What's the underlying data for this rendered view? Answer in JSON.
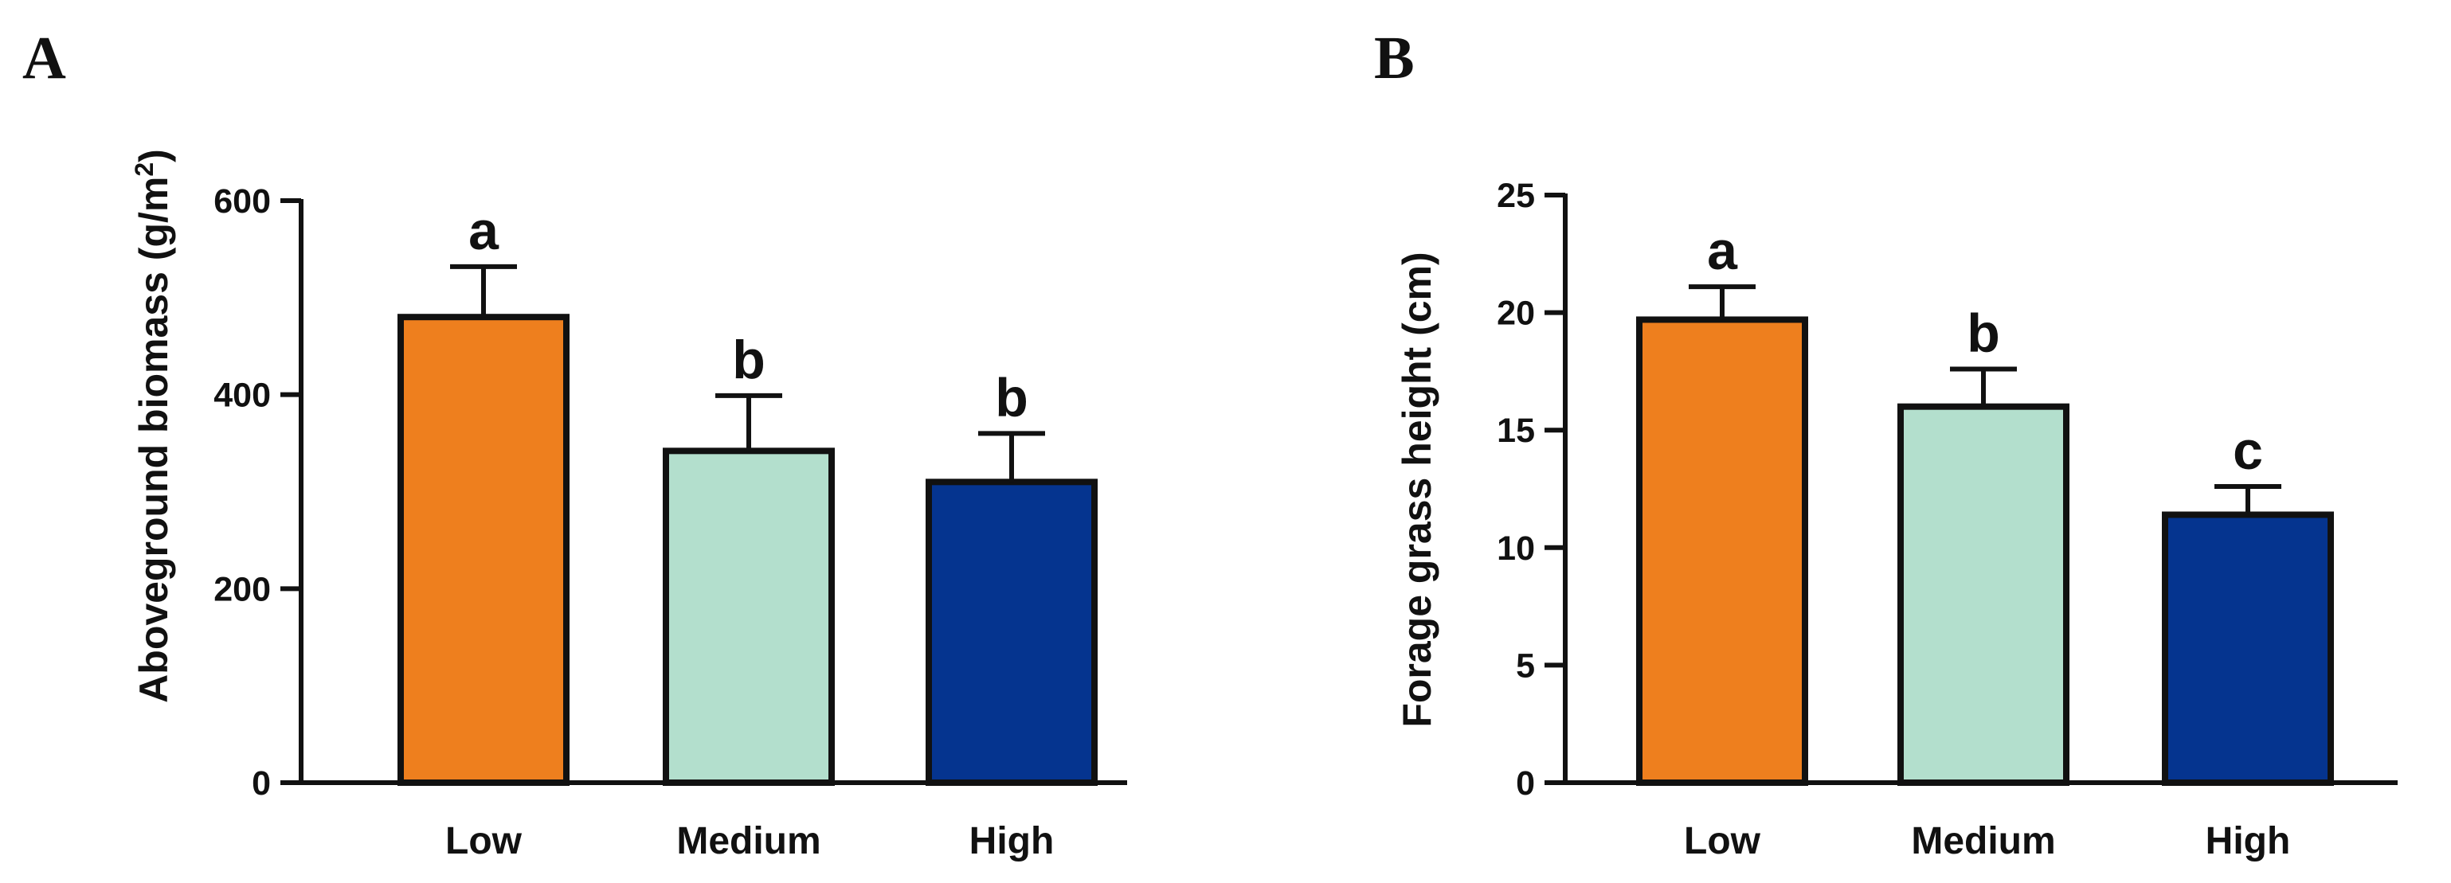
{
  "chart_data": [
    {
      "panel_label": "A",
      "type": "bar",
      "categories": [
        "Low",
        "Medium",
        "High"
      ],
      "values": [
        480,
        342,
        310
      ],
      "errors": [
        52,
        57,
        50
      ],
      "significance": [
        "a",
        "b",
        "b"
      ],
      "colors": [
        "#ee7f1e",
        "#b3dfcd",
        "#05348f"
      ],
      "xlabel": "",
      "ylabel": "Aboveground biomass (g/m",
      "ylabel_superscript": "2",
      "ylabel_suffix": ")",
      "ylim": [
        0,
        600
      ],
      "yticks": [
        0,
        200,
        400,
        600
      ],
      "grid": false
    },
    {
      "panel_label": "B",
      "type": "bar",
      "categories": [
        "Low",
        "Medium",
        "High"
      ],
      "values": [
        19.7,
        16.0,
        11.4
      ],
      "errors": [
        1.4,
        1.6,
        1.2
      ],
      "significance": [
        "a",
        "b",
        "c"
      ],
      "colors": [
        "#ee7f1e",
        "#b3dfcd",
        "#05348f"
      ],
      "xlabel": "",
      "ylabel": "Forage grass height (cm)",
      "ylim": [
        0,
        25
      ],
      "yticks": [
        0,
        5,
        10,
        15,
        20,
        25
      ],
      "grid": false
    }
  ]
}
